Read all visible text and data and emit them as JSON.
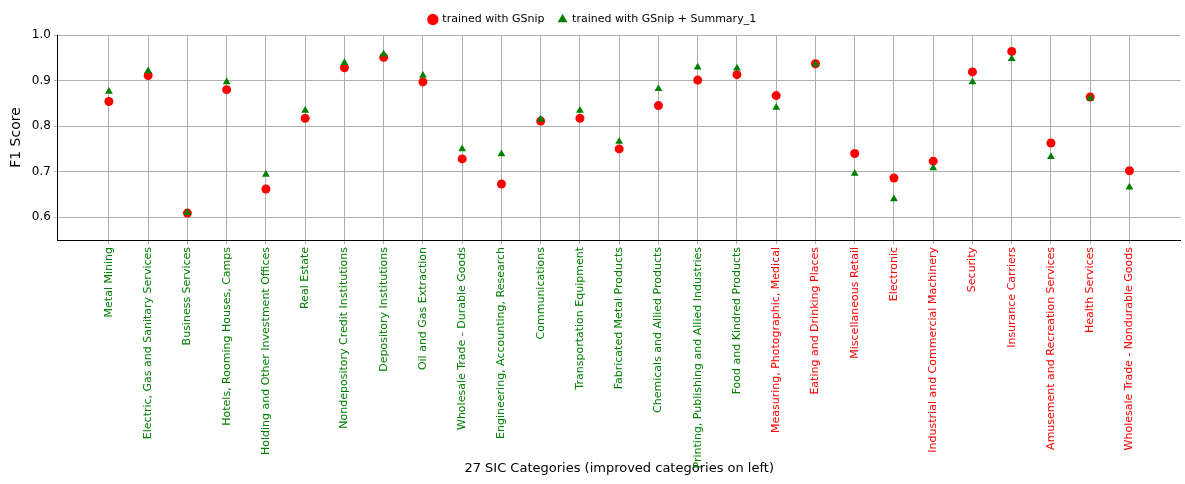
{
  "chart_data": {
    "type": "scatter",
    "xlabel": "27 SIC Categories (improved categories on left)",
    "ylabel": "F1 Score",
    "categories": [
      "Metal Mining",
      "Electric, Gas and Sanitary Services",
      "Business Services",
      "Hotels, Rooming Houses, Camps",
      "Holding and Other Investment Offices",
      "Real Estate",
      "Nondepository Credit Institutions",
      "Depository Institutions",
      "Oil and Gas Extraction",
      "Wholesale Trade - Durable Goods",
      "Engineering, Accounting, Research",
      "Communications",
      "Transportation Equipment",
      "Fabricated Metal Products",
      "Chemicals and Allied Products",
      "Printing, Publishing and Allied Industries",
      "Food and Kindred Products",
      "Measuring, Photographic, Medical",
      "Eating and Drinking Places",
      "Miscellaneous Retail",
      "Electronic",
      "Industrial and Commercial Machinery",
      "Security",
      "Insurance Carriers",
      "Amusement and Recreation Services",
      "Health Services",
      "Wholesale Trade - Nondurable Goods"
    ],
    "series": [
      {
        "name": "trained with GSnip",
        "color": "#ff0000",
        "marker": "circle",
        "values": [
          0.854,
          0.911,
          0.609,
          0.88,
          0.662,
          0.817,
          0.928,
          0.951,
          0.897,
          0.728,
          0.673,
          0.811,
          0.817,
          0.75,
          0.845,
          0.901,
          0.913,
          0.867,
          0.937,
          0.74,
          0.686,
          0.723,
          0.919,
          0.964,
          0.763,
          0.864,
          0.702
        ]
      },
      {
        "name": "trained with GSnip + Summary_1",
        "color": "#008000",
        "marker": "triangle",
        "values": [
          0.876,
          0.921,
          0.61,
          0.897,
          0.694,
          0.834,
          0.939,
          0.958,
          0.911,
          0.75,
          0.739,
          0.815,
          0.834,
          0.766,
          0.882,
          0.929,
          0.927,
          0.841,
          0.936,
          0.696,
          0.64,
          0.708,
          0.897,
          0.948,
          0.733,
          0.861,
          0.666
        ]
      }
    ],
    "ylim": [
      0.55,
      1.0
    ],
    "yticks": [
      {
        "value": 0.6,
        "label": "0.6"
      },
      {
        "value": 0.7,
        "label": "0.7"
      },
      {
        "value": 0.8,
        "label": "0.8"
      },
      {
        "value": 0.9,
        "label": "0.9"
      },
      {
        "value": 1.0,
        "label": "1.0"
      }
    ],
    "grid": true,
    "legend": "top"
  }
}
